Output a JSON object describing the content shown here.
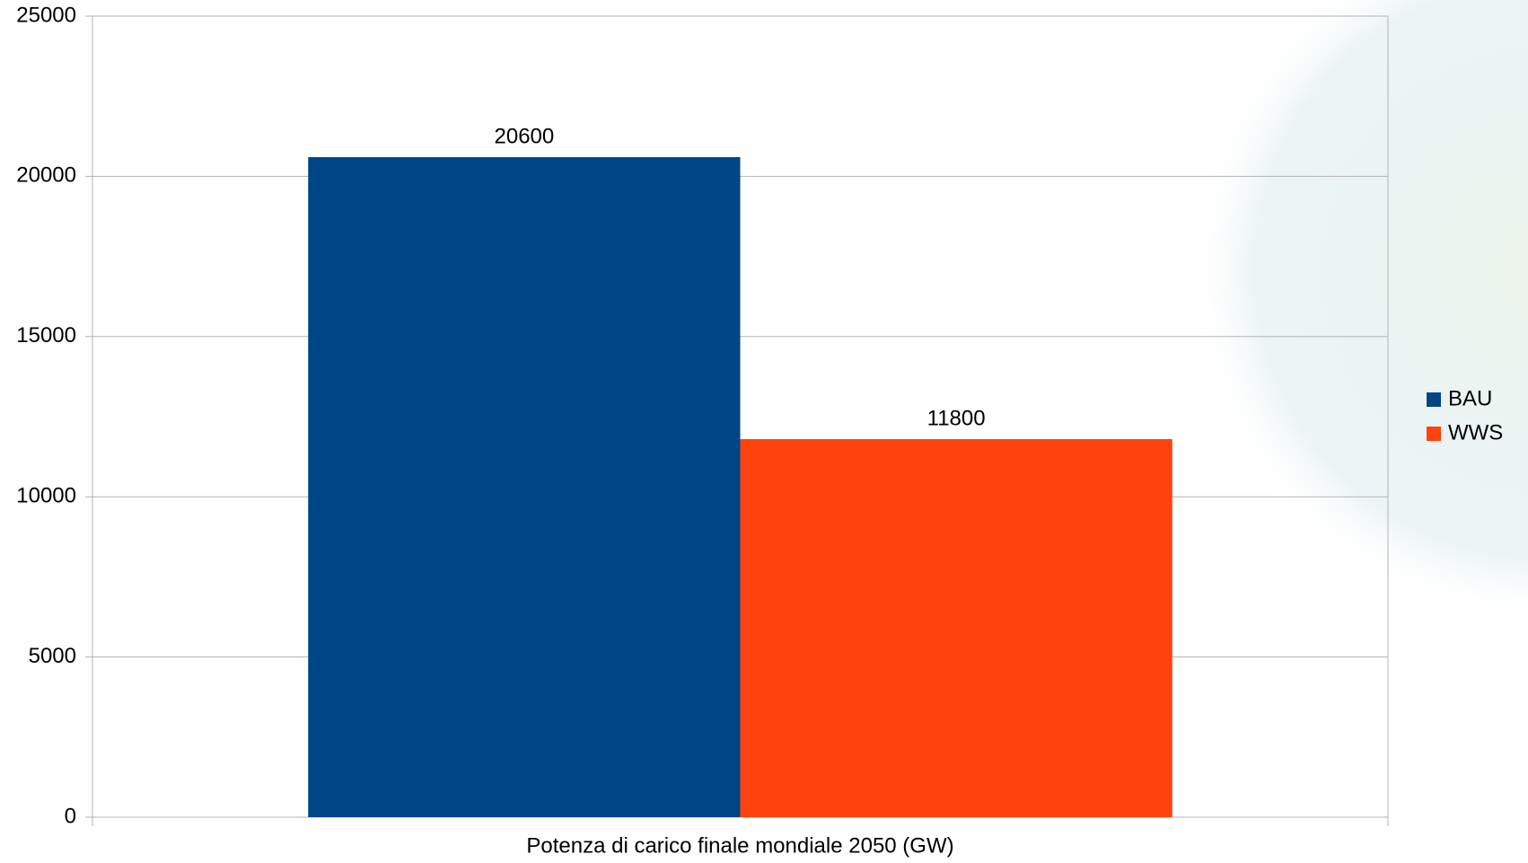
{
  "chart_data": {
    "type": "bar",
    "categories": [
      "Potenza di carico finale mondiale 2050 (GW)"
    ],
    "series": [
      {
        "name": "BAU",
        "color": "#004586",
        "values": [
          20600
        ]
      },
      {
        "name": "WWS",
        "color": "#ff420e",
        "values": [
          11800
        ]
      }
    ],
    "ylim": [
      0,
      25000
    ],
    "yticks": [
      0,
      5000,
      10000,
      15000,
      20000,
      25000
    ],
    "grid": true,
    "legend": "right",
    "data_labels": true
  }
}
